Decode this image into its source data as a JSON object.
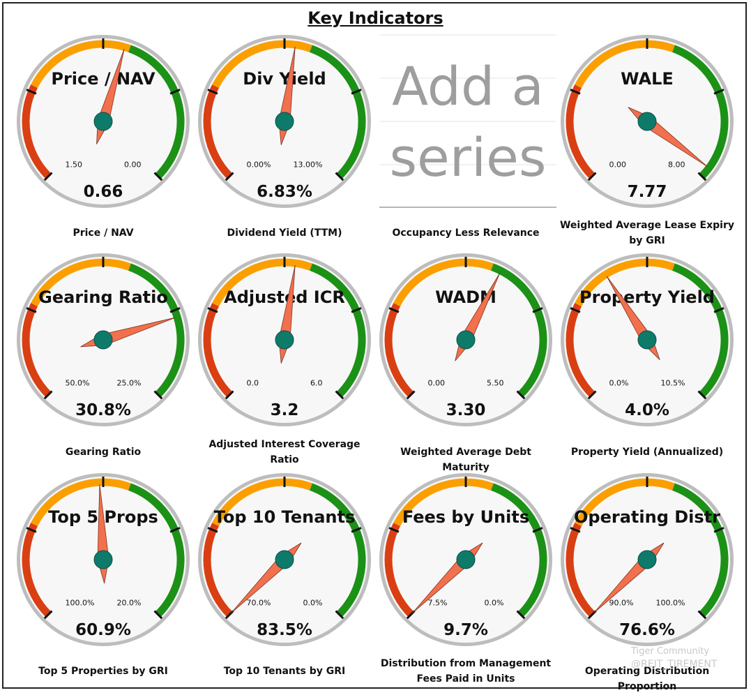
{
  "page_title": "Key Indicators",
  "placeholder": {
    "line1": "Add a",
    "line2": "series"
  },
  "watermark": {
    "brand": "Tiger Community",
    "handle": "@REIT_TIREMENT"
  },
  "colors": {
    "red": "#d93f12",
    "orange": "#fb9f00",
    "green": "#1b9116",
    "needle": "#f2704d",
    "hub": "#0e7a6a",
    "rim": "#bdbdbd",
    "face": "#f7f7f7"
  },
  "chart_data": [
    {
      "type": "gauge",
      "title": "Price / NAV",
      "caption": "Price / NAV",
      "value_label": "0.66",
      "min_label": "1.50",
      "max_label": "0.00",
      "value_fraction": 0.56
    },
    {
      "type": "gauge",
      "title": "Div Yield",
      "caption": "Dividend Yield (TTM)",
      "value_label": "6.83%",
      "min_label": "0.00%",
      "max_label": "13.00%",
      "value_fraction": 0.53
    },
    {
      "type": "gauge",
      "title": "WALE",
      "caption": "Weighted Average Lease Expiry by GRI",
      "value_label": "7.77",
      "min_label": "0.00",
      "max_label": "8.00",
      "value_fraction": 0.97
    },
    {
      "type": "gauge",
      "title": "Gearing Ratio",
      "caption": "Gearing Ratio",
      "value_label": "30.8%",
      "min_label": "50.0%",
      "max_label": "25.0%",
      "value_fraction": 0.77
    },
    {
      "type": "gauge",
      "title": "Adjusted ICR",
      "caption": "Adjusted Interest Coverage Ratio",
      "value_label": "3.2",
      "min_label": "0.0",
      "max_label": "6.0",
      "value_fraction": 0.53
    },
    {
      "type": "gauge",
      "title": "WADM",
      "caption": "Weighted Average Debt Maturity",
      "value_label": "3.30",
      "min_label": "0.00",
      "max_label": "5.50",
      "value_fraction": 0.6
    },
    {
      "type": "gauge",
      "title": "Property Yield",
      "caption": "Property Yield (Annualized)",
      "value_label": "4.0%",
      "min_label": "0.0%",
      "max_label": "10.5%",
      "value_fraction": 0.38
    },
    {
      "type": "gauge",
      "title": "Top 5 Props",
      "caption": "Top 5 Properties by GRI",
      "value_label": "60.9%",
      "min_label": "100.0%",
      "max_label": "20.0%",
      "value_fraction": 0.49
    },
    {
      "type": "gauge",
      "title": "Top 10 Tenants",
      "caption": "Top 10 Tenants by GRI",
      "value_label": "83.5%",
      "min_label": "70.0%",
      "max_label": "0.0%",
      "value_fraction": 0.0
    },
    {
      "type": "gauge",
      "title": "Fees by Units",
      "caption": "Distribution from Management Fees Paid in Units",
      "value_label": "9.7%",
      "min_label": "7.5%",
      "max_label": "0.0%",
      "value_fraction": 0.0
    },
    {
      "type": "gauge",
      "title": "Operating Distr",
      "caption": "Operating Distribution Proportion",
      "value_label": "76.6%",
      "min_label": "90.0%",
      "max_label": "100.0%",
      "value_fraction": 0.0
    }
  ]
}
